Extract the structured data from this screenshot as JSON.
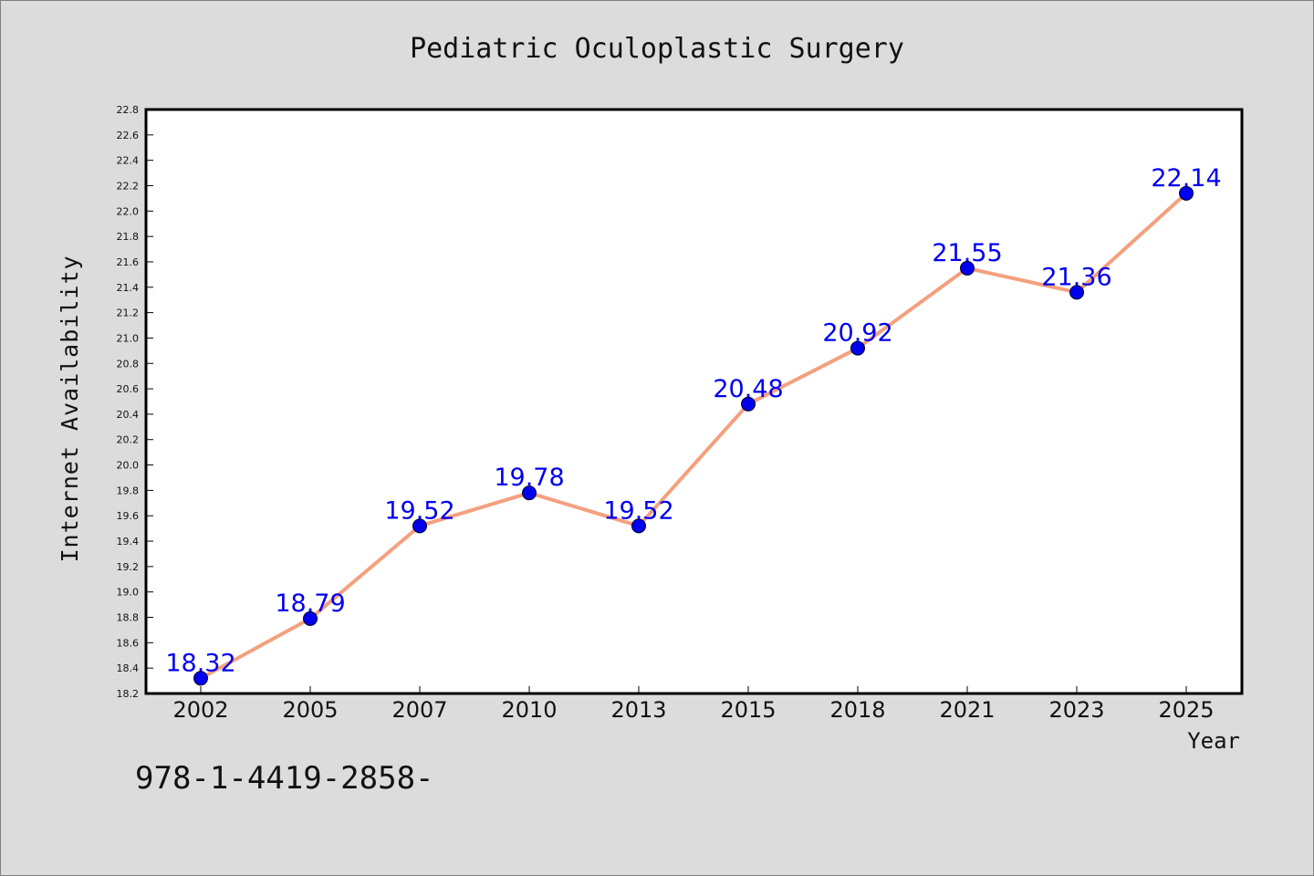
{
  "chart_data": {
    "type": "line",
    "title": "Pediatric Oculoplastic Surgery",
    "xlabel": "Year",
    "ylabel": "Internet Availability",
    "categories": [
      "2002",
      "2005",
      "2007",
      "2010",
      "2013",
      "2015",
      "2018",
      "2021",
      "2023",
      "2025"
    ],
    "series": [
      {
        "values": [
          18.32,
          18.79,
          19.52,
          19.78,
          19.52,
          20.48,
          20.92,
          21.55,
          21.36,
          22.14
        ],
        "data_labels": [
          "18.32",
          "18.79",
          "19.52",
          "19.78",
          "19.52",
          "20.48",
          "20.92",
          "21.55",
          "21.36",
          "22.14"
        ]
      }
    ],
    "ylim": [
      18.2,
      22.8
    ],
    "yticks": [
      "18.2",
      "18.4",
      "18.6",
      "18.8",
      "19.0",
      "19.2",
      "19.4",
      "19.6",
      "19.8",
      "20.0",
      "20.2",
      "20.4",
      "20.6",
      "20.8",
      "21.0",
      "21.2",
      "21.4",
      "21.6",
      "21.8",
      "22.0",
      "22.2",
      "22.4",
      "22.6",
      "22.8"
    ],
    "grid": false,
    "legend": "none",
    "colors": {
      "line": "#f4a07e",
      "marker": "#0000ee",
      "data_label": "#0000ee",
      "plot_background": "#ffffff",
      "page_background": "#dcdcdc"
    }
  },
  "footer_text": "978-1-4419-2858-"
}
